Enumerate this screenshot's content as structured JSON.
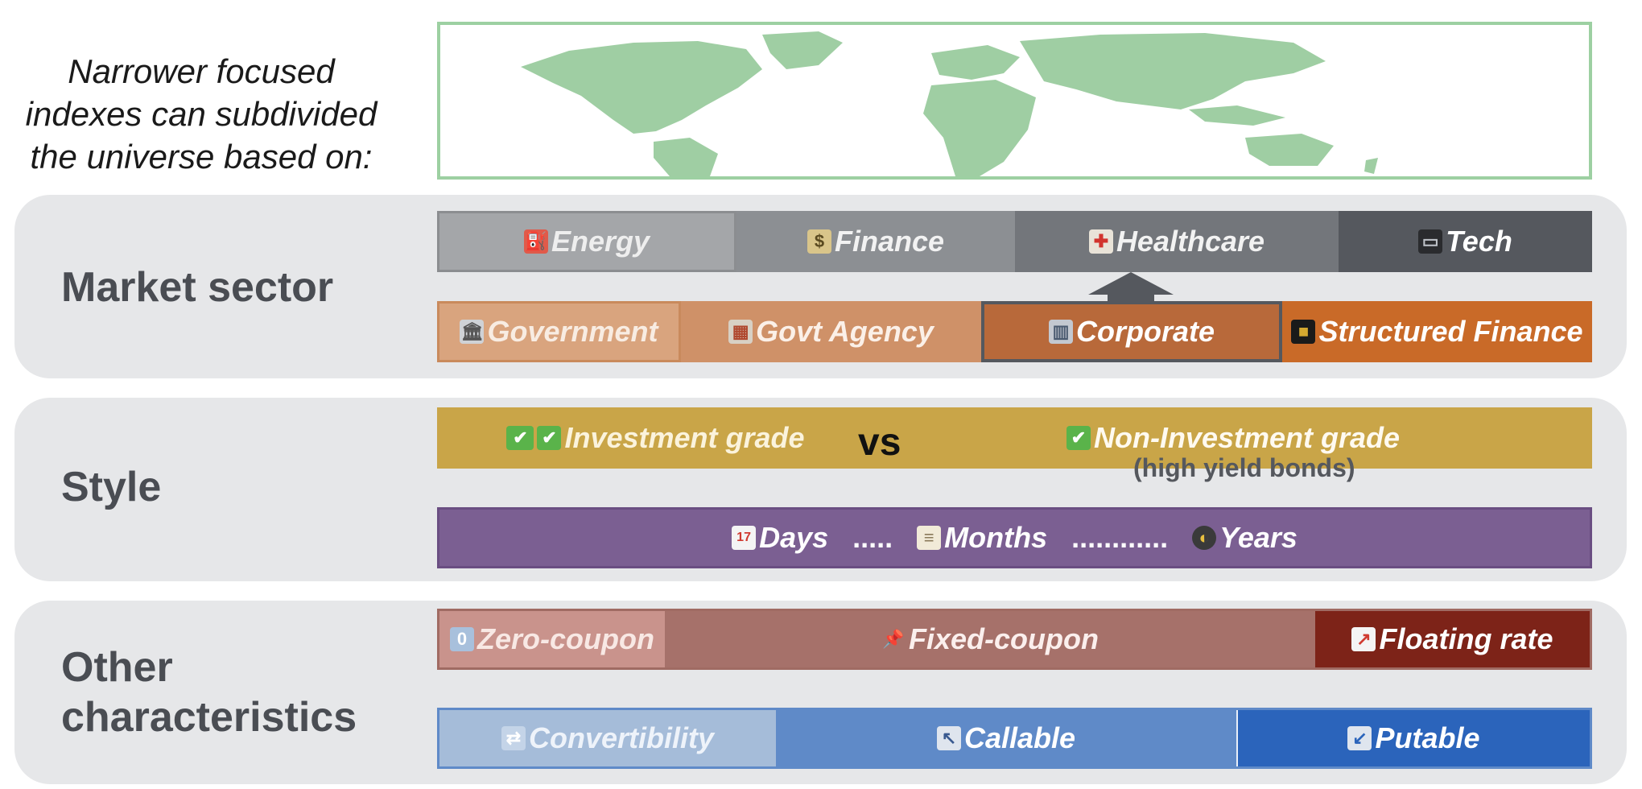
{
  "intro": [
    "Narrower focused",
    "indexes can subdivided",
    "the universe based on:"
  ],
  "colors": {
    "map_border": "#9dd0a2",
    "map_land": "#9fcea3",
    "panel_bg": "#e6e7e9",
    "label_text": "#4a4d53",
    "sector_gray": [
      "#a4a6a9",
      "#8c8f93",
      "#73767b",
      "#55585e"
    ],
    "issuer_orange": [
      "#d9a47e",
      "#cf9168",
      "#b8693a",
      "#c96a28"
    ],
    "style_gold": "#c9a548",
    "maturity_purple": "#7b5f92",
    "coupon_red": [
      "#c9938c",
      "#a6716a",
      "#7d2318"
    ],
    "option_blue": [
      "#a5bcd9",
      "#5f8ac8",
      "#2b64bb"
    ]
  },
  "panels": [
    {
      "label": "Market sector"
    },
    {
      "label": "Style"
    },
    {
      "label": "Other characteristics"
    }
  ],
  "sectors": [
    {
      "icon": "fuel-pump-icon",
      "label": "Energy"
    },
    {
      "icon": "money-icon",
      "label": "Finance"
    },
    {
      "icon": "hospital-icon",
      "label": "Healthcare"
    },
    {
      "icon": "laptop-icon",
      "label": "Tech"
    }
  ],
  "issuers": [
    {
      "icon": "classical-building-icon",
      "label": "Government"
    },
    {
      "icon": "post-office-icon",
      "label": "Govt Agency"
    },
    {
      "icon": "office-building-icon",
      "label": "Corporate"
    },
    {
      "icon": "kaaba-icon",
      "label": "Structured Finance"
    }
  ],
  "grades": {
    "investment": {
      "icon": "double-check-icon",
      "label": "Investment grade"
    },
    "vs": "vs",
    "non_investment": {
      "icon": "check-icon",
      "label": "Non-Investment grade"
    },
    "non_investment_sub": "(high yield bonds)"
  },
  "maturities": {
    "days": {
      "icon": "calendar-icon",
      "label": "Days"
    },
    "sep1": ".....",
    "months": {
      "icon": "notepad-icon",
      "label": "Months"
    },
    "sep2": "............",
    "years": {
      "icon": "moon-icon",
      "label": "Years"
    }
  },
  "coupons": [
    {
      "icon": "zero-keycap-icon",
      "label": "Zero-coupon"
    },
    {
      "icon": "pushpin-icon",
      "label": "Fixed-coupon"
    },
    {
      "icon": "chart-increasing-icon",
      "label": "Floating rate"
    }
  ],
  "options": [
    {
      "icon": "repeat-arrows-icon",
      "label": "Convertibility"
    },
    {
      "icon": "up-left-arrow-icon",
      "label": "Callable"
    },
    {
      "icon": "down-left-arrow-icon",
      "label": "Putable"
    }
  ]
}
